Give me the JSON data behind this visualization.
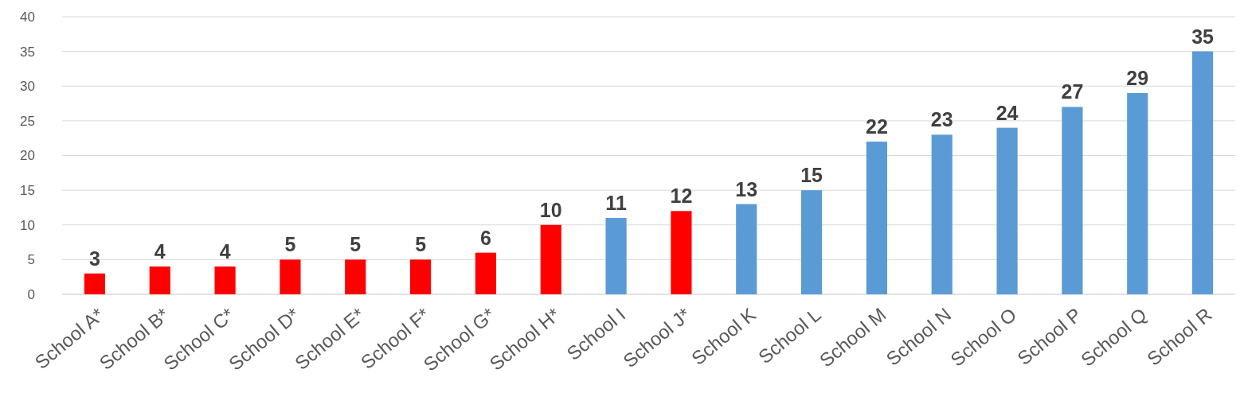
{
  "chart_data": {
    "type": "bar",
    "categories": [
      "School A*",
      "School B*",
      "School C*",
      "School D*",
      "School E*",
      "School F*",
      "School G*",
      "School H*",
      "School I",
      "School J*",
      "School K",
      "School L",
      "School M",
      "School N",
      "School O",
      "School P",
      "School Q",
      "School R"
    ],
    "values": [
      3,
      4,
      4,
      5,
      5,
      5,
      6,
      10,
      11,
      12,
      13,
      15,
      22,
      23,
      24,
      27,
      29,
      35
    ],
    "colors": [
      "#ff0000",
      "#ff0000",
      "#ff0000",
      "#ff0000",
      "#ff0000",
      "#ff0000",
      "#ff0000",
      "#ff0000",
      "#5b9bd5",
      "#ff0000",
      "#5b9bd5",
      "#5b9bd5",
      "#5b9bd5",
      "#5b9bd5",
      "#5b9bd5",
      "#5b9bd5",
      "#5b9bd5",
      "#5b9bd5"
    ],
    "ylim": [
      0,
      40
    ],
    "yticks": [
      0,
      5,
      10,
      15,
      20,
      25,
      30,
      35,
      40
    ],
    "grid": "y",
    "data_labels": true
  }
}
